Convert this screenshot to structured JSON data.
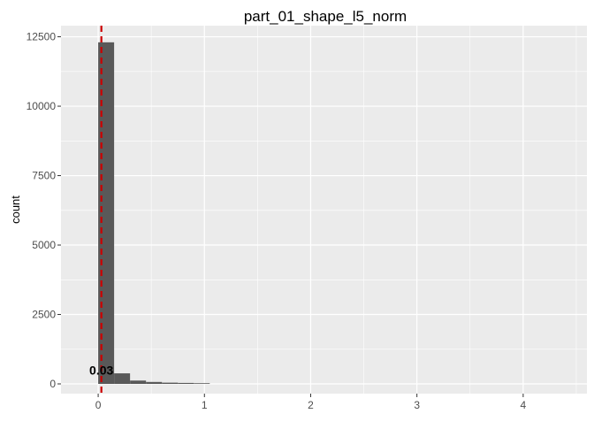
{
  "chart_data": {
    "type": "bar",
    "title": "part_01_shape_l5_norm",
    "xlabel": "",
    "ylabel": "count",
    "xlim": [
      -0.35,
      4.6
    ],
    "ylim": [
      -350,
      12900
    ],
    "x_ticks": [
      {
        "value": 0,
        "label": "0"
      },
      {
        "value": 1,
        "label": "1"
      },
      {
        "value": 2,
        "label": "2"
      },
      {
        "value": 3,
        "label": "3"
      },
      {
        "value": 4,
        "label": "4"
      }
    ],
    "y_ticks": [
      {
        "value": 0,
        "label": "0"
      },
      {
        "value": 2500,
        "label": "2500"
      },
      {
        "value": 5000,
        "label": "5000"
      },
      {
        "value": 7500,
        "label": "7500"
      },
      {
        "value": 10000,
        "label": "10000"
      },
      {
        "value": 12500,
        "label": "12500"
      }
    ],
    "bin_width": 0.15,
    "bins": [
      {
        "x0": 0.0,
        "x1": 0.15,
        "count": 12300
      },
      {
        "x0": 0.15,
        "x1": 0.3,
        "count": 380
      },
      {
        "x0": 0.3,
        "x1": 0.45,
        "count": 120
      },
      {
        "x0": 0.45,
        "x1": 0.6,
        "count": 70
      },
      {
        "x0": 0.6,
        "x1": 0.75,
        "count": 45
      },
      {
        "x0": 0.75,
        "x1": 0.9,
        "count": 35
      },
      {
        "x0": 0.9,
        "x1": 1.05,
        "count": 25
      }
    ],
    "reference_line": {
      "x": 0.03,
      "label": "0.03",
      "label_y": 500,
      "color": "#cc0000",
      "style": "dashed"
    },
    "bar_color": "#595959",
    "panel_background": "#ebebeb",
    "grid": true,
    "grid_color": "#ffffff"
  }
}
